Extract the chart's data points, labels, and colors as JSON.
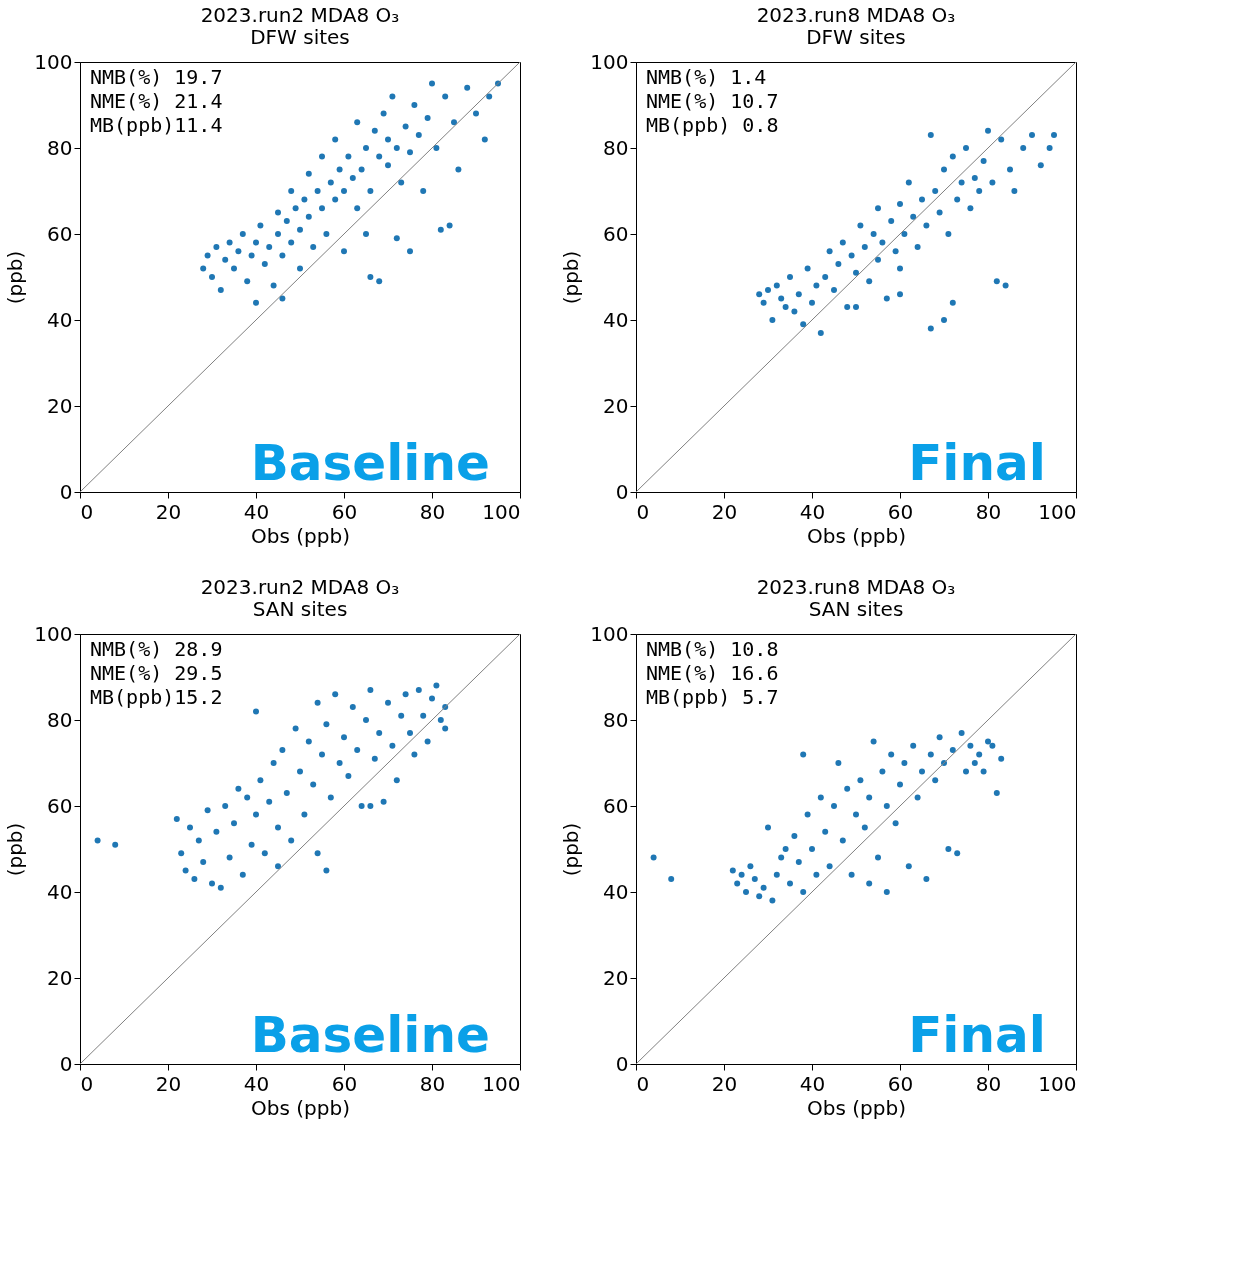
{
  "chart_data": [
    {
      "type": "scatter",
      "title": "2023.run2 MDA8 O₃",
      "subtitle": "DFW sites",
      "xlabel": "Obs (ppb)",
      "ylabel": "(ppb)",
      "xlim": [
        0,
        100
      ],
      "ylim": [
        0,
        100
      ],
      "xticks": [
        0,
        20,
        40,
        60,
        80,
        100
      ],
      "yticks": [
        0,
        20,
        40,
        60,
        80,
        100
      ],
      "grid": false,
      "annotations": [
        "NMB(%) 19.7",
        "NME(%) 21.4",
        "MB(ppb)11.4",
        "Baseline"
      ],
      "series": [
        {
          "type": "scatter",
          "marker": "circle",
          "color": "#1f77b4",
          "x": [
            28,
            29,
            30,
            31,
            32,
            33,
            34,
            35,
            36,
            37,
            38,
            39,
            40,
            40,
            41,
            42,
            43,
            44,
            45,
            45,
            46,
            47,
            48,
            48,
            49,
            50,
            50,
            51,
            52,
            52,
            53,
            54,
            55,
            55,
            56,
            57,
            58,
            58,
            59,
            60,
            60,
            61,
            62,
            63,
            63,
            64,
            65,
            65,
            66,
            67,
            68,
            69,
            70,
            70,
            71,
            72,
            73,
            74,
            75,
            76,
            77,
            78,
            79,
            80,
            81,
            82,
            83,
            84,
            85,
            86,
            88,
            90,
            92,
            93,
            95,
            68,
            72,
            75,
            66,
            46
          ],
          "values": [
            52,
            55,
            50,
            57,
            47,
            54,
            58,
            52,
            56,
            60,
            49,
            55,
            58,
            44,
            62,
            53,
            57,
            48,
            60,
            65,
            55,
            63,
            58,
            70,
            66,
            61,
            52,
            68,
            64,
            74,
            57,
            70,
            66,
            78,
            60,
            72,
            68,
            82,
            75,
            70,
            56,
            78,
            73,
            86,
            66,
            75,
            80,
            60,
            70,
            84,
            78,
            88,
            76,
            82,
            92,
            80,
            72,
            85,
            79,
            90,
            83,
            70,
            87,
            95,
            80,
            61,
            92,
            62,
            86,
            75,
            94,
            88,
            82,
            92,
            95,
            49,
            59,
            56,
            50,
            45
          ]
        },
        {
          "type": "line",
          "color": "#808080",
          "x": [
            0,
            100
          ],
          "values": [
            0,
            100
          ]
        }
      ]
    },
    {
      "type": "scatter",
      "title": "2023.run8 MDA8 O₃",
      "subtitle": "DFW sites",
      "xlabel": "Obs (ppb)",
      "ylabel": "(ppb)",
      "xlim": [
        0,
        100
      ],
      "ylim": [
        0,
        100
      ],
      "xticks": [
        0,
        20,
        40,
        60,
        80,
        100
      ],
      "yticks": [
        0,
        20,
        40,
        60,
        80,
        100
      ],
      "grid": false,
      "annotations": [
        "NMB(%)  1.4",
        "NME(%) 10.7",
        "MB(ppb) 0.8",
        "Final"
      ],
      "series": [
        {
          "type": "scatter",
          "marker": "circle",
          "color": "#1f77b4",
          "x": [
            28,
            29,
            30,
            31,
            32,
            33,
            34,
            35,
            36,
            37,
            38,
            39,
            40,
            41,
            42,
            43,
            44,
            45,
            46,
            47,
            48,
            49,
            50,
            51,
            52,
            53,
            54,
            55,
            55,
            56,
            57,
            58,
            59,
            60,
            60,
            61,
            62,
            63,
            64,
            65,
            66,
            67,
            67,
            68,
            69,
            70,
            71,
            72,
            73,
            74,
            75,
            76,
            77,
            78,
            79,
            80,
            81,
            82,
            83,
            84,
            85,
            86,
            88,
            90,
            92,
            94,
            95,
            70,
            72,
            60,
            50
          ],
          "values": [
            46,
            44,
            47,
            40,
            48,
            45,
            43,
            50,
            42,
            46,
            39,
            52,
            44,
            48,
            37,
            50,
            56,
            47,
            53,
            58,
            43,
            55,
            51,
            62,
            57,
            49,
            60,
            54,
            66,
            58,
            45,
            63,
            56,
            67,
            52,
            60,
            72,
            64,
            57,
            68,
            62,
            83,
            38,
            70,
            65,
            75,
            60,
            78,
            68,
            72,
            80,
            66,
            73,
            70,
            77,
            84,
            72,
            49,
            82,
            48,
            75,
            70,
            80,
            83,
            76,
            80,
            83,
            40,
            44,
            46,
            43
          ]
        },
        {
          "type": "line",
          "color": "#808080",
          "x": [
            0,
            100
          ],
          "values": [
            0,
            100
          ]
        }
      ]
    },
    {
      "type": "scatter",
      "title": "2023.run2 MDA8 O₃",
      "subtitle": "SAN sites",
      "xlabel": "Obs (ppb)",
      "ylabel": "(ppb)",
      "xlim": [
        0,
        100
      ],
      "ylim": [
        0,
        100
      ],
      "xticks": [
        0,
        20,
        40,
        60,
        80,
        100
      ],
      "yticks": [
        0,
        20,
        40,
        60,
        80,
        100
      ],
      "grid": false,
      "annotations": [
        "NMB(%) 28.9",
        "NME(%) 29.5",
        "MB(ppb)15.2",
        "Baseline"
      ],
      "series": [
        {
          "type": "scatter",
          "marker": "circle",
          "color": "#1f77b4",
          "x": [
            4,
            8,
            22,
            23,
            24,
            25,
            26,
            27,
            28,
            29,
            30,
            31,
            32,
            33,
            34,
            35,
            36,
            37,
            38,
            39,
            40,
            40,
            41,
            42,
            43,
            44,
            45,
            45,
            46,
            47,
            48,
            49,
            50,
            51,
            52,
            53,
            54,
            54,
            55,
            56,
            56,
            57,
            58,
            59,
            60,
            61,
            62,
            63,
            64,
            65,
            66,
            67,
            68,
            69,
            70,
            71,
            72,
            73,
            74,
            75,
            76,
            77,
            78,
            79,
            80,
            81,
            82,
            83,
            83,
            66
          ],
          "values": [
            52,
            51,
            57,
            49,
            45,
            55,
            43,
            52,
            47,
            59,
            42,
            54,
            41,
            60,
            48,
            56,
            64,
            44,
            62,
            51,
            82,
            58,
            66,
            49,
            61,
            70,
            55,
            46,
            73,
            63,
            52,
            78,
            68,
            58,
            75,
            65,
            84,
            49,
            72,
            45,
            79,
            62,
            86,
            70,
            76,
            67,
            83,
            73,
            60,
            80,
            87,
            71,
            77,
            61,
            84,
            74,
            66,
            81,
            86,
            77,
            72,
            87,
            81,
            75,
            85,
            88,
            80,
            83,
            78,
            60
          ]
        },
        {
          "type": "line",
          "color": "#808080",
          "x": [
            0,
            100
          ],
          "values": [
            0,
            100
          ]
        }
      ]
    },
    {
      "type": "scatter",
      "title": "2023.run8 MDA8 O₃",
      "subtitle": "SAN sites",
      "xlabel": "Obs (ppb)",
      "ylabel": "(ppb)",
      "xlim": [
        0,
        100
      ],
      "ylim": [
        0,
        100
      ],
      "xticks": [
        0,
        20,
        40,
        60,
        80,
        100
      ],
      "yticks": [
        0,
        20,
        40,
        60,
        80,
        100
      ],
      "grid": false,
      "annotations": [
        "NMB(%) 10.8",
        "NME(%) 16.6",
        "MB(ppb) 5.7",
        "Final"
      ],
      "series": [
        {
          "type": "scatter",
          "marker": "circle",
          "color": "#1f77b4",
          "x": [
            4,
            8,
            22,
            23,
            24,
            25,
            26,
            27,
            28,
            29,
            30,
            31,
            32,
            33,
            34,
            35,
            36,
            37,
            38,
            38,
            39,
            40,
            41,
            42,
            43,
            44,
            45,
            46,
            47,
            48,
            49,
            50,
            51,
            52,
            53,
            54,
            55,
            56,
            57,
            58,
            59,
            60,
            61,
            62,
            63,
            64,
            65,
            66,
            67,
            68,
            69,
            70,
            71,
            72,
            73,
            74,
            75,
            76,
            77,
            78,
            79,
            80,
            81,
            82,
            83,
            53,
            57
          ],
          "values": [
            48,
            43,
            45,
            42,
            44,
            40,
            46,
            43,
            39,
            41,
            55,
            38,
            44,
            48,
            50,
            42,
            53,
            47,
            72,
            40,
            58,
            50,
            44,
            62,
            54,
            46,
            60,
            70,
            52,
            64,
            44,
            58,
            66,
            55,
            62,
            75,
            48,
            68,
            60,
            72,
            56,
            65,
            70,
            46,
            74,
            62,
            68,
            43,
            72,
            66,
            76,
            70,
            50,
            73,
            49,
            77,
            68,
            74,
            70,
            72,
            68,
            75,
            74,
            63,
            71,
            42,
            40
          ]
        },
        {
          "type": "line",
          "color": "#808080",
          "x": [
            0,
            100
          ],
          "values": [
            0,
            100
          ]
        }
      ]
    }
  ]
}
